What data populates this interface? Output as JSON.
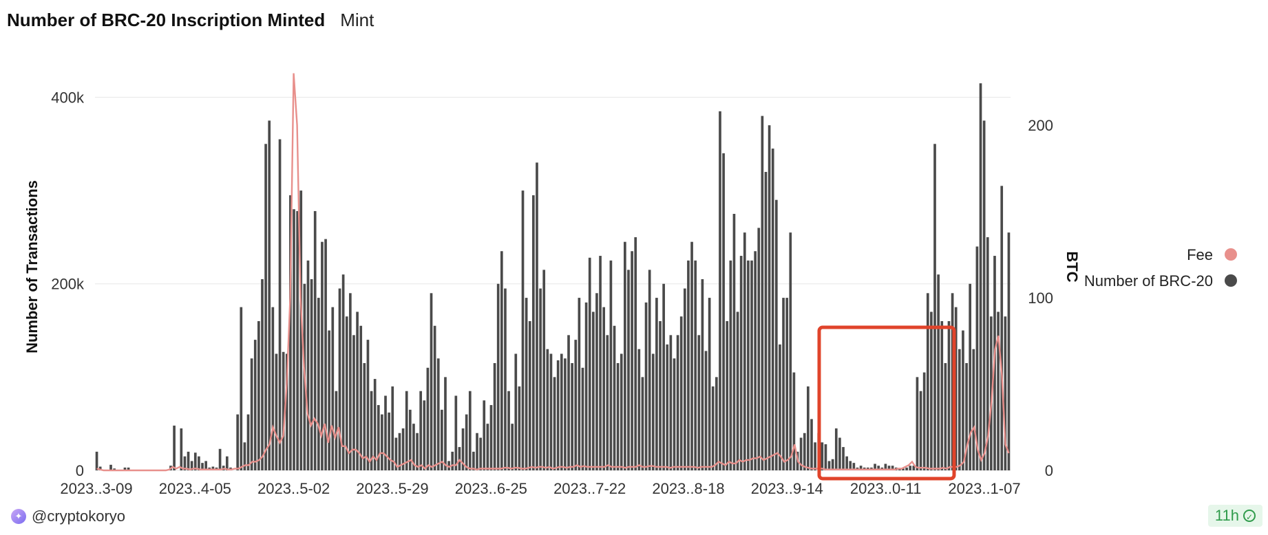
{
  "header": {
    "title": "Number of BRC-20 Inscription Minted",
    "subtitle": "Mint"
  },
  "footer": {
    "user": "@cryptokoryo",
    "freshness": "11h"
  },
  "colors": {
    "bars": "#4a4a4a",
    "fee_line": "#e8908c",
    "highlight": "#e0442b",
    "gridline": "#ebebeb"
  },
  "chart_data": {
    "type": "bar+line",
    "ylabel_left": "Number of Transactions",
    "ylabel_right": "BTC",
    "yticks_left": [
      "400k",
      "200k",
      "0"
    ],
    "yticks_right": [
      "200",
      "100",
      "0"
    ],
    "ylim_left": [
      0,
      435000
    ],
    "ylim_right": [
      0,
      235
    ],
    "xticks": [
      "2023..3-09",
      "2023..4-05",
      "2023..5-02",
      "2023..5-29",
      "2023..6-25",
      "2023..7-22",
      "2023..8-18",
      "2023..9-14",
      "2023..0-11",
      "2023..1-07"
    ],
    "legend": {
      "position": "right",
      "entries": [
        {
          "name": "Fee",
          "color": "#e8908c"
        },
        {
          "name": "Number of BRC-20",
          "color": "#4a4a4a"
        }
      ]
    },
    "series": [
      {
        "name": "Number of BRC-20",
        "axis": "left",
        "kind": "bar",
        "values": [
          20000,
          4000,
          0,
          0,
          6000,
          2000,
          0,
          0,
          3000,
          3000,
          0,
          0,
          0,
          0,
          0,
          0,
          0,
          0,
          0,
          0,
          0,
          5000,
          48000,
          0,
          45000,
          15000,
          20000,
          10000,
          19000,
          15000,
          8000,
          10000,
          3000,
          4000,
          3000,
          23000,
          5000,
          15000,
          3000,
          0,
          60000,
          175000,
          30000,
          60000,
          120000,
          140000,
          160000,
          205000,
          350000,
          375000,
          175000,
          125000,
          355000,
          127000,
          125000,
          295000,
          280000,
          278000,
          300000,
          200000,
          225000,
          205000,
          278000,
          185000,
          245000,
          248000,
          150000,
          175000,
          85000,
          195000,
          210000,
          165000,
          190000,
          145000,
          170000,
          155000,
          115000,
          140000,
          85000,
          98000,
          70000,
          60000,
          80000,
          62000,
          90000,
          35000,
          40000,
          45000,
          85000,
          65000,
          50000,
          40000,
          85000,
          75000,
          110000,
          190000,
          155000,
          120000,
          65000,
          100000,
          10000,
          20000,
          80000,
          25000,
          45000,
          60000,
          85000,
          20000,
          40000,
          35000,
          75000,
          50000,
          70000,
          115000,
          200000,
          235000,
          195000,
          85000,
          50000,
          125000,
          90000,
          300000,
          185000,
          160000,
          295000,
          330000,
          195000,
          215000,
          130000,
          125000,
          100000,
          118000,
          125000,
          120000,
          145000,
          115000,
          140000,
          185000,
          110000,
          180000,
          228000,
          170000,
          190000,
          230000,
          175000,
          145000,
          225000,
          155000,
          115000,
          125000,
          245000,
          215000,
          235000,
          250000,
          130000,
          100000,
          180000,
          215000,
          125000,
          185000,
          160000,
          200000,
          135000,
          145000,
          120000,
          145000,
          165000,
          195000,
          225000,
          245000,
          225000,
          145000,
          205000,
          128000,
          185000,
          90000,
          100000,
          385000,
          340000,
          160000,
          225000,
          275000,
          170000,
          230000,
          255000,
          225000,
          225000,
          235000,
          260000,
          380000,
          320000,
          370000,
          345000,
          290000,
          135000,
          185000,
          185000,
          255000,
          105000,
          20000,
          35000,
          40000,
          90000,
          55000,
          30000,
          40000,
          30000,
          28000,
          10000,
          12000,
          45000,
          35000,
          25000,
          15000,
          10000,
          8000,
          3000,
          5000,
          3000,
          3000,
          3000,
          7000,
          5000,
          3000,
          7000,
          5000,
          5000,
          3000,
          2000,
          2000,
          3000,
          5000,
          5000,
          100000,
          85000,
          105000,
          190000,
          170000,
          350000,
          210000,
          160000,
          115000,
          160000,
          190000,
          175000,
          130000,
          150000,
          115000,
          200000,
          130000,
          240000,
          415000,
          375000,
          250000,
          165000,
          230000,
          170000,
          305000,
          165000,
          255000
        ]
      },
      {
        "name": "Fee",
        "axis": "right",
        "kind": "line",
        "values": [
          1,
          0.5,
          0,
          0,
          0,
          0,
          0,
          0,
          0,
          0,
          0,
          0,
          0,
          0,
          0,
          0,
          0,
          0,
          0,
          0,
          0,
          0.5,
          2,
          1,
          2,
          1,
          1,
          0.5,
          1,
          1,
          0.5,
          0.5,
          0.5,
          0.5,
          0.5,
          0.5,
          0.5,
          1,
          0.5,
          0.5,
          1,
          1,
          2,
          3,
          3,
          5,
          5,
          6,
          8,
          12,
          15,
          25,
          20,
          16,
          20,
          50,
          100,
          230,
          200,
          100,
          60,
          33,
          26,
          30,
          27,
          20,
          27,
          16,
          26,
          19,
          25,
          14,
          14,
          10,
          12,
          12,
          10,
          7,
          8,
          5,
          8,
          6,
          10,
          10,
          8,
          6,
          5,
          2,
          3,
          4,
          5,
          6,
          3,
          2,
          3,
          1,
          3,
          2,
          3,
          4,
          5,
          3,
          2,
          3,
          3,
          6,
          4,
          2,
          1,
          1,
          0.5,
          1,
          1,
          1,
          1,
          1,
          1,
          1,
          1.5,
          1.5,
          1,
          1.5,
          1.5,
          1,
          1,
          1.5,
          2,
          1.5,
          2,
          2,
          1.5,
          2,
          1,
          1.5,
          2,
          2,
          1.5,
          2,
          2,
          3,
          2,
          2.5,
          2,
          2,
          2,
          2,
          2,
          2,
          3,
          2,
          2,
          2,
          2,
          1.5,
          2,
          2,
          2,
          3,
          2,
          2,
          2.5,
          2.5,
          2,
          2,
          2,
          2,
          1.5,
          2,
          2,
          2,
          2,
          2,
          2,
          2,
          1.5,
          2,
          2,
          2,
          2,
          3,
          5,
          4,
          3,
          5,
          4,
          4,
          6,
          5,
          6,
          6,
          7,
          7,
          8,
          6,
          7,
          8,
          9,
          10,
          8,
          5,
          6,
          8,
          15,
          5,
          3,
          2,
          1.5,
          1,
          1,
          1,
          1,
          0.5,
          0.5,
          0.5,
          0.5,
          0.5,
          0.5,
          0.5,
          0.5,
          0.5,
          0.5,
          0.5,
          0.5,
          0.5,
          0.5,
          0.5,
          0.5,
          0.5,
          0.5,
          0.5,
          0.5,
          0.5,
          1,
          1,
          2,
          3,
          5,
          2,
          1.5,
          1.5,
          1.5,
          1,
          1,
          1,
          1,
          1.5,
          1,
          2,
          2,
          2,
          3,
          5,
          15,
          22,
          25,
          12,
          6,
          10,
          20,
          40,
          70,
          78,
          55,
          15,
          10
        ]
      }
    ]
  }
}
